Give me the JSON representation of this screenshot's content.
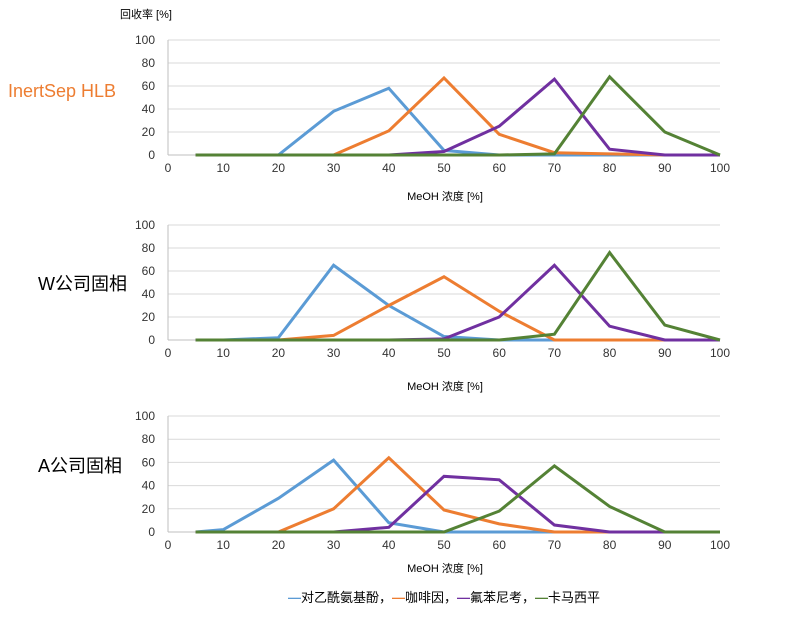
{
  "y_axis_label": "回收率 [%]",
  "legend": {
    "dash": "—",
    "sep": "，",
    "items": [
      "对乙酰氨基酚",
      "咖啡因",
      "氟苯尼考",
      "卡马西平"
    ]
  },
  "colors": {
    "label_orange": "#ED7D31",
    "label_dark": "#000000",
    "grid": "#d9d9d9",
    "axis": "#bfbfbf"
  },
  "chart_data": [
    {
      "type": "line",
      "panel_label": "InertSep HLB",
      "label_color": "#ED7D31",
      "xlabel": "MeOH 浓度 [%]",
      "ylabel": "回收率 [%]",
      "xlim": [
        0,
        100
      ],
      "ylim": [
        0,
        100
      ],
      "x_ticks": [
        0,
        10,
        20,
        30,
        40,
        50,
        60,
        70,
        80,
        90,
        100
      ],
      "y_ticks": [
        0,
        20,
        40,
        60,
        80,
        100
      ],
      "x": [
        5,
        10,
        20,
        30,
        40,
        50,
        60,
        70,
        80,
        90,
        100
      ],
      "series": [
        {
          "color": "#5B9BD5",
          "values": [
            0,
            0,
            0,
            38,
            58,
            4,
            0,
            0,
            0,
            0,
            0
          ]
        },
        {
          "color": "#ED7D31",
          "values": [
            0,
            0,
            0,
            0,
            21,
            67,
            18,
            2,
            1,
            0,
            0
          ]
        },
        {
          "color": "#7030A0",
          "values": [
            0,
            0,
            0,
            0,
            0,
            3,
            25,
            66,
            5,
            0,
            0
          ]
        },
        {
          "color": "#548235",
          "values": [
            0,
            0,
            0,
            0,
            0,
            0,
            0,
            1,
            68,
            20,
            0
          ]
        }
      ]
    },
    {
      "type": "line",
      "panel_label": "W公司固相",
      "label_color": "#000000",
      "xlabel": "MeOH 浓度 [%]",
      "ylabel": "",
      "xlim": [
        0,
        100
      ],
      "ylim": [
        0,
        100
      ],
      "x_ticks": [
        0,
        10,
        20,
        30,
        40,
        50,
        60,
        70,
        80,
        90,
        100
      ],
      "y_ticks": [
        0,
        20,
        40,
        60,
        80,
        100
      ],
      "x": [
        5,
        10,
        20,
        30,
        40,
        50,
        60,
        70,
        80,
        90,
        100
      ],
      "series": [
        {
          "color": "#5B9BD5",
          "values": [
            0,
            0,
            2,
            65,
            30,
            3,
            0,
            0,
            0,
            0,
            0
          ]
        },
        {
          "color": "#ED7D31",
          "values": [
            0,
            0,
            0,
            4,
            30,
            55,
            25,
            0,
            0,
            0,
            0
          ]
        },
        {
          "color": "#7030A0",
          "values": [
            0,
            0,
            0,
            0,
            0,
            1,
            20,
            65,
            12,
            0,
            0
          ]
        },
        {
          "color": "#548235",
          "values": [
            0,
            0,
            0,
            0,
            0,
            0,
            0,
            5,
            76,
            13,
            0
          ]
        }
      ]
    },
    {
      "type": "line",
      "panel_label": "A公司固相",
      "label_color": "#000000",
      "xlabel": "MeOH 浓度 [%]",
      "ylabel": "",
      "xlim": [
        0,
        100
      ],
      "ylim": [
        0,
        100
      ],
      "x_ticks": [
        0,
        10,
        20,
        30,
        40,
        50,
        60,
        70,
        80,
        90,
        100
      ],
      "y_ticks": [
        0,
        20,
        40,
        60,
        80,
        100
      ],
      "x": [
        5,
        10,
        20,
        30,
        40,
        50,
        60,
        70,
        80,
        90,
        100
      ],
      "series": [
        {
          "color": "#5B9BD5",
          "values": [
            0,
            2,
            29,
            62,
            8,
            0,
            0,
            0,
            0,
            0,
            0
          ]
        },
        {
          "color": "#ED7D31",
          "values": [
            0,
            0,
            0,
            20,
            64,
            19,
            7,
            0,
            0,
            0,
            0
          ]
        },
        {
          "color": "#7030A0",
          "values": [
            0,
            0,
            0,
            0,
            4,
            48,
            45,
            6,
            0,
            0,
            0
          ]
        },
        {
          "color": "#548235",
          "values": [
            0,
            0,
            0,
            0,
            0,
            0,
            18,
            57,
            22,
            0,
            0
          ]
        }
      ]
    }
  ]
}
